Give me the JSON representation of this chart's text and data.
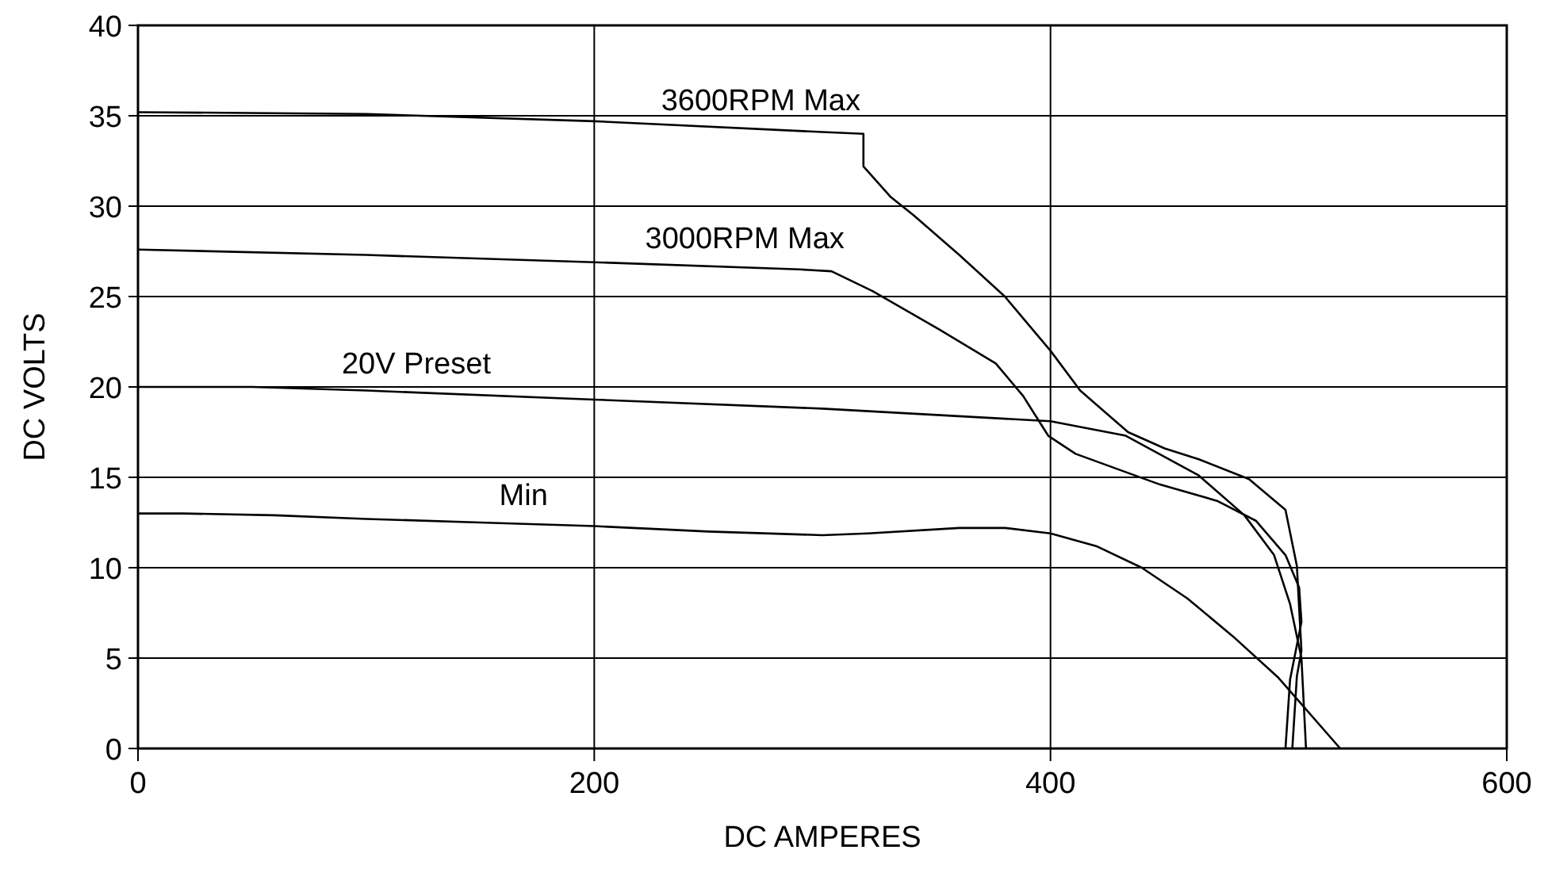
{
  "chart_data": {
    "type": "line",
    "xlabel": "DC AMPERES",
    "ylabel": "DC VOLTS",
    "xlim": [
      0,
      600
    ],
    "ylim": [
      0,
      40
    ],
    "xticks": [
      0,
      200,
      400,
      600
    ],
    "yticks": [
      0,
      5,
      10,
      15,
      20,
      25,
      30,
      35,
      40
    ],
    "grid": true,
    "marker": "none",
    "line_style": "solid",
    "series": [
      {
        "name": "3600RPM Max",
        "color": "#000000",
        "x": [
          0,
          100,
          200,
          300,
          318,
          318,
          330,
          340,
          360,
          380,
          400,
          413,
          434,
          450,
          465,
          487,
          503,
          508,
          510,
          508,
          506
        ],
        "values": [
          35.2,
          35.1,
          34.7,
          34.1,
          34.0,
          32.2,
          30.5,
          29.5,
          27.3,
          25.0,
          22.0,
          19.8,
          17.5,
          16.6,
          16.0,
          14.9,
          13.2,
          10.1,
          5.4,
          4.0,
          0
        ]
      },
      {
        "name": "3000RPM Max",
        "color": "#000000",
        "x": [
          0,
          100,
          200,
          290,
          304,
          322,
          351,
          376,
          388,
          399,
          411,
          448,
          473,
          490,
          503,
          509,
          510,
          505,
          503
        ],
        "values": [
          27.6,
          27.3,
          26.9,
          26.5,
          26.4,
          25.3,
          23.2,
          21.3,
          19.5,
          17.3,
          16.3,
          14.6,
          13.7,
          12.6,
          10.7,
          8.9,
          7.0,
          3.8,
          0
        ]
      },
      {
        "name": "20V Preset",
        "color": "#000000",
        "x": [
          0,
          50,
          100,
          200,
          300,
          400,
          433,
          465,
          485,
          498,
          505,
          510,
          512
        ],
        "values": [
          20.0,
          20.0,
          19.8,
          19.3,
          18.8,
          18.1,
          17.3,
          15.1,
          12.9,
          10.7,
          8.0,
          5.0,
          0
        ]
      },
      {
        "name": "Min",
        "color": "#000000",
        "x": [
          0,
          20,
          60,
          100,
          150,
          200,
          250,
          300,
          320,
          360,
          380,
          400,
          420,
          440,
          460,
          480,
          500,
          527
        ],
        "values": [
          13.0,
          13.0,
          12.9,
          12.7,
          12.5,
          12.3,
          12.0,
          11.8,
          11.9,
          12.2,
          12.2,
          11.9,
          11.2,
          10.0,
          8.3,
          6.2,
          3.9,
          0
        ]
      }
    ]
  }
}
